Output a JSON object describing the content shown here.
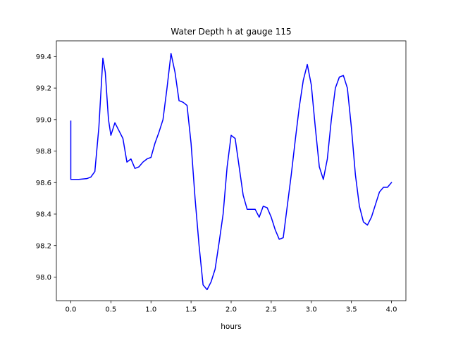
{
  "chart_data": {
    "type": "line",
    "title": "Water Depth h at gauge 115",
    "xlabel": "hours",
    "ylabel": "",
    "xlim": [
      -0.18,
      4.18
    ],
    "ylim": [
      97.85,
      99.5
    ],
    "xticks": [
      0.0,
      0.5,
      1.0,
      1.5,
      2.0,
      2.5,
      3.0,
      3.5,
      4.0
    ],
    "xtick_labels": [
      "0.0",
      "0.5",
      "1.0",
      "1.5",
      "2.0",
      "2.5",
      "3.0",
      "3.5",
      "4.0"
    ],
    "yticks": [
      98.0,
      98.2,
      98.4,
      98.6,
      98.8,
      99.0,
      99.2,
      99.4
    ],
    "ytick_labels": [
      "98.0",
      "98.2",
      "98.4",
      "98.6",
      "98.8",
      "99.0",
      "99.2",
      "99.4"
    ],
    "grid": false,
    "series": [
      {
        "name": "",
        "color": "#0000ff",
        "x": [
          0.0,
          0.0,
          0.1,
          0.2,
          0.25,
          0.3,
          0.35,
          0.4,
          0.43,
          0.47,
          0.5,
          0.55,
          0.6,
          0.65,
          0.7,
          0.75,
          0.8,
          0.85,
          0.9,
          0.95,
          1.0,
          1.05,
          1.1,
          1.15,
          1.2,
          1.25,
          1.3,
          1.35,
          1.4,
          1.45,
          1.5,
          1.55,
          1.6,
          1.65,
          1.7,
          1.75,
          1.8,
          1.85,
          1.9,
          1.95,
          2.0,
          2.05,
          2.1,
          2.15,
          2.2,
          2.25,
          2.3,
          2.35,
          2.4,
          2.45,
          2.5,
          2.55,
          2.6,
          2.65,
          2.7,
          2.75,
          2.8,
          2.85,
          2.9,
          2.95,
          3.0,
          3.05,
          3.1,
          3.15,
          3.2,
          3.25,
          3.3,
          3.35,
          3.4,
          3.45,
          3.5,
          3.55,
          3.6,
          3.65,
          3.7,
          3.75,
          3.8,
          3.85,
          3.9,
          3.95,
          4.0
        ],
        "y": [
          98.99,
          98.62,
          98.62,
          98.625,
          98.635,
          98.67,
          98.95,
          99.39,
          99.3,
          99.0,
          98.9,
          98.98,
          98.93,
          98.88,
          98.73,
          98.75,
          98.69,
          98.7,
          98.73,
          98.75,
          98.76,
          98.85,
          98.92,
          99.0,
          99.2,
          99.42,
          99.3,
          99.12,
          99.11,
          99.09,
          98.85,
          98.5,
          98.2,
          97.95,
          97.92,
          97.97,
          98.05,
          98.22,
          98.4,
          98.7,
          98.9,
          98.88,
          98.7,
          98.52,
          98.43,
          98.43,
          98.43,
          98.38,
          98.45,
          98.44,
          98.38,
          98.3,
          98.24,
          98.25,
          98.45,
          98.65,
          98.87,
          99.08,
          99.25,
          99.35,
          99.22,
          98.95,
          98.7,
          98.62,
          98.75,
          99.0,
          99.2,
          99.27,
          99.28,
          99.2,
          98.95,
          98.65,
          98.45,
          98.35,
          98.33,
          98.38,
          98.46,
          98.54,
          98.57,
          98.57,
          98.6
        ]
      }
    ]
  }
}
